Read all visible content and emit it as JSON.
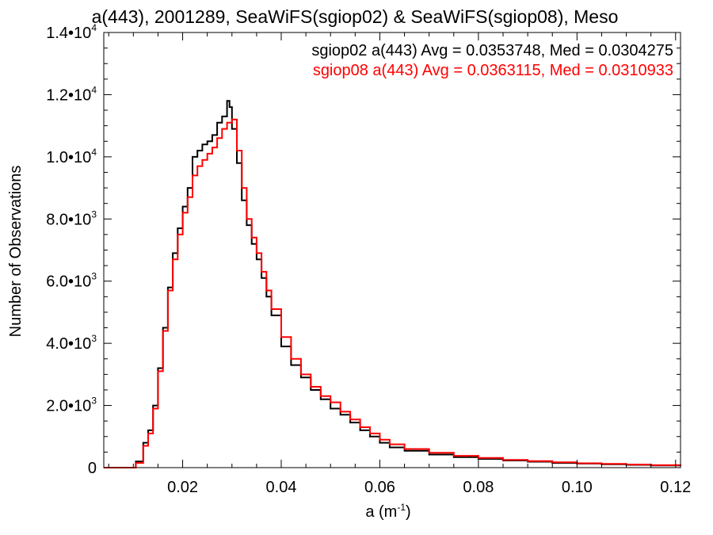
{
  "chart_data": {
    "type": "line",
    "title": "a(443), 2001289, SeaWiFS(sgiop02) & SeaWiFS(sgiop08), Meso",
    "xlabel": "a (m",
    "xlabel_exp": "-1",
    "xlabel_close": ")",
    "ylabel": "Number of Observations",
    "xlim": [
      0.004,
      0.121
    ],
    "ylim": [
      0,
      14000
    ],
    "x_ticks": [
      {
        "value": 0.02,
        "label": "0.02"
      },
      {
        "value": 0.04,
        "label": "0.04"
      },
      {
        "value": 0.06,
        "label": "0.06"
      },
      {
        "value": 0.08,
        "label": "0.08"
      },
      {
        "value": 0.1,
        "label": "0.10"
      },
      {
        "value": 0.12,
        "label": "0.12"
      }
    ],
    "y_ticks": [
      {
        "value": 0,
        "label": "0",
        "exp": ""
      },
      {
        "value": 2000,
        "label": "2.0•10",
        "exp": "3"
      },
      {
        "value": 4000,
        "label": "4.0•10",
        "exp": "3"
      },
      {
        "value": 6000,
        "label": "6.0•10",
        "exp": "3"
      },
      {
        "value": 8000,
        "label": "8.0•10",
        "exp": "3"
      },
      {
        "value": 10000,
        "label": "1.0•10",
        "exp": "4"
      },
      {
        "value": 12000,
        "label": "1.2•10",
        "exp": "4"
      },
      {
        "value": 14000,
        "label": "1.4•10",
        "exp": "4"
      }
    ],
    "legend_position": "top-right",
    "grid": false,
    "series": [
      {
        "name": "sgiop02 a(443) Avg = 0.0353748, Med = 0.0304275",
        "color": "#000000",
        "x": [
          0.004,
          0.009,
          0.0105,
          0.012,
          0.013,
          0.014,
          0.015,
          0.016,
          0.017,
          0.018,
          0.019,
          0.02,
          0.021,
          0.022,
          0.023,
          0.024,
          0.025,
          0.026,
          0.027,
          0.028,
          0.029,
          0.0295,
          0.03,
          0.031,
          0.032,
          0.033,
          0.034,
          0.035,
          0.036,
          0.037,
          0.038,
          0.04,
          0.042,
          0.044,
          0.046,
          0.048,
          0.05,
          0.052,
          0.054,
          0.056,
          0.058,
          0.06,
          0.062,
          0.065,
          0.07,
          0.075,
          0.08,
          0.085,
          0.09,
          0.095,
          0.1,
          0.105,
          0.11,
          0.115,
          0.121
        ],
        "y": [
          0,
          0,
          200,
          800,
          1200,
          2000,
          3200,
          4500,
          5800,
          6900,
          7700,
          8400,
          9000,
          10000,
          10200,
          10400,
          10500,
          10700,
          11100,
          11300,
          11800,
          11600,
          10900,
          9800,
          8600,
          7800,
          7200,
          6700,
          6100,
          5500,
          4900,
          3900,
          3300,
          2900,
          2500,
          2200,
          1900,
          1700,
          1450,
          1200,
          1000,
          800,
          650,
          540,
          420,
          340,
          280,
          230,
          190,
          150,
          130,
          110,
          90,
          70,
          50
        ]
      },
      {
        "name": "sgiop08 a(443) Avg = 0.0363115, Med = 0.0310933",
        "color": "#ff0000",
        "x": [
          0.004,
          0.009,
          0.0105,
          0.012,
          0.013,
          0.014,
          0.015,
          0.016,
          0.017,
          0.018,
          0.019,
          0.02,
          0.021,
          0.022,
          0.023,
          0.024,
          0.025,
          0.026,
          0.027,
          0.028,
          0.029,
          0.03,
          0.031,
          0.032,
          0.033,
          0.034,
          0.035,
          0.036,
          0.037,
          0.038,
          0.04,
          0.042,
          0.044,
          0.046,
          0.048,
          0.05,
          0.052,
          0.054,
          0.056,
          0.058,
          0.06,
          0.062,
          0.065,
          0.07,
          0.075,
          0.08,
          0.085,
          0.09,
          0.095,
          0.1,
          0.105,
          0.11,
          0.115,
          0.121
        ],
        "y": [
          0,
          0,
          150,
          700,
          1100,
          1900,
          3100,
          4400,
          5700,
          6700,
          7500,
          8200,
          8700,
          9400,
          9700,
          9900,
          10100,
          10300,
          10600,
          10900,
          11100,
          11200,
          10200,
          9000,
          8000,
          7400,
          6900,
          6300,
          5700,
          5100,
          4200,
          3500,
          3000,
          2600,
          2300,
          2100,
          1800,
          1550,
          1300,
          1100,
          900,
          750,
          600,
          480,
          380,
          310,
          250,
          210,
          170,
          140,
          120,
          100,
          80,
          60
        ]
      }
    ]
  }
}
